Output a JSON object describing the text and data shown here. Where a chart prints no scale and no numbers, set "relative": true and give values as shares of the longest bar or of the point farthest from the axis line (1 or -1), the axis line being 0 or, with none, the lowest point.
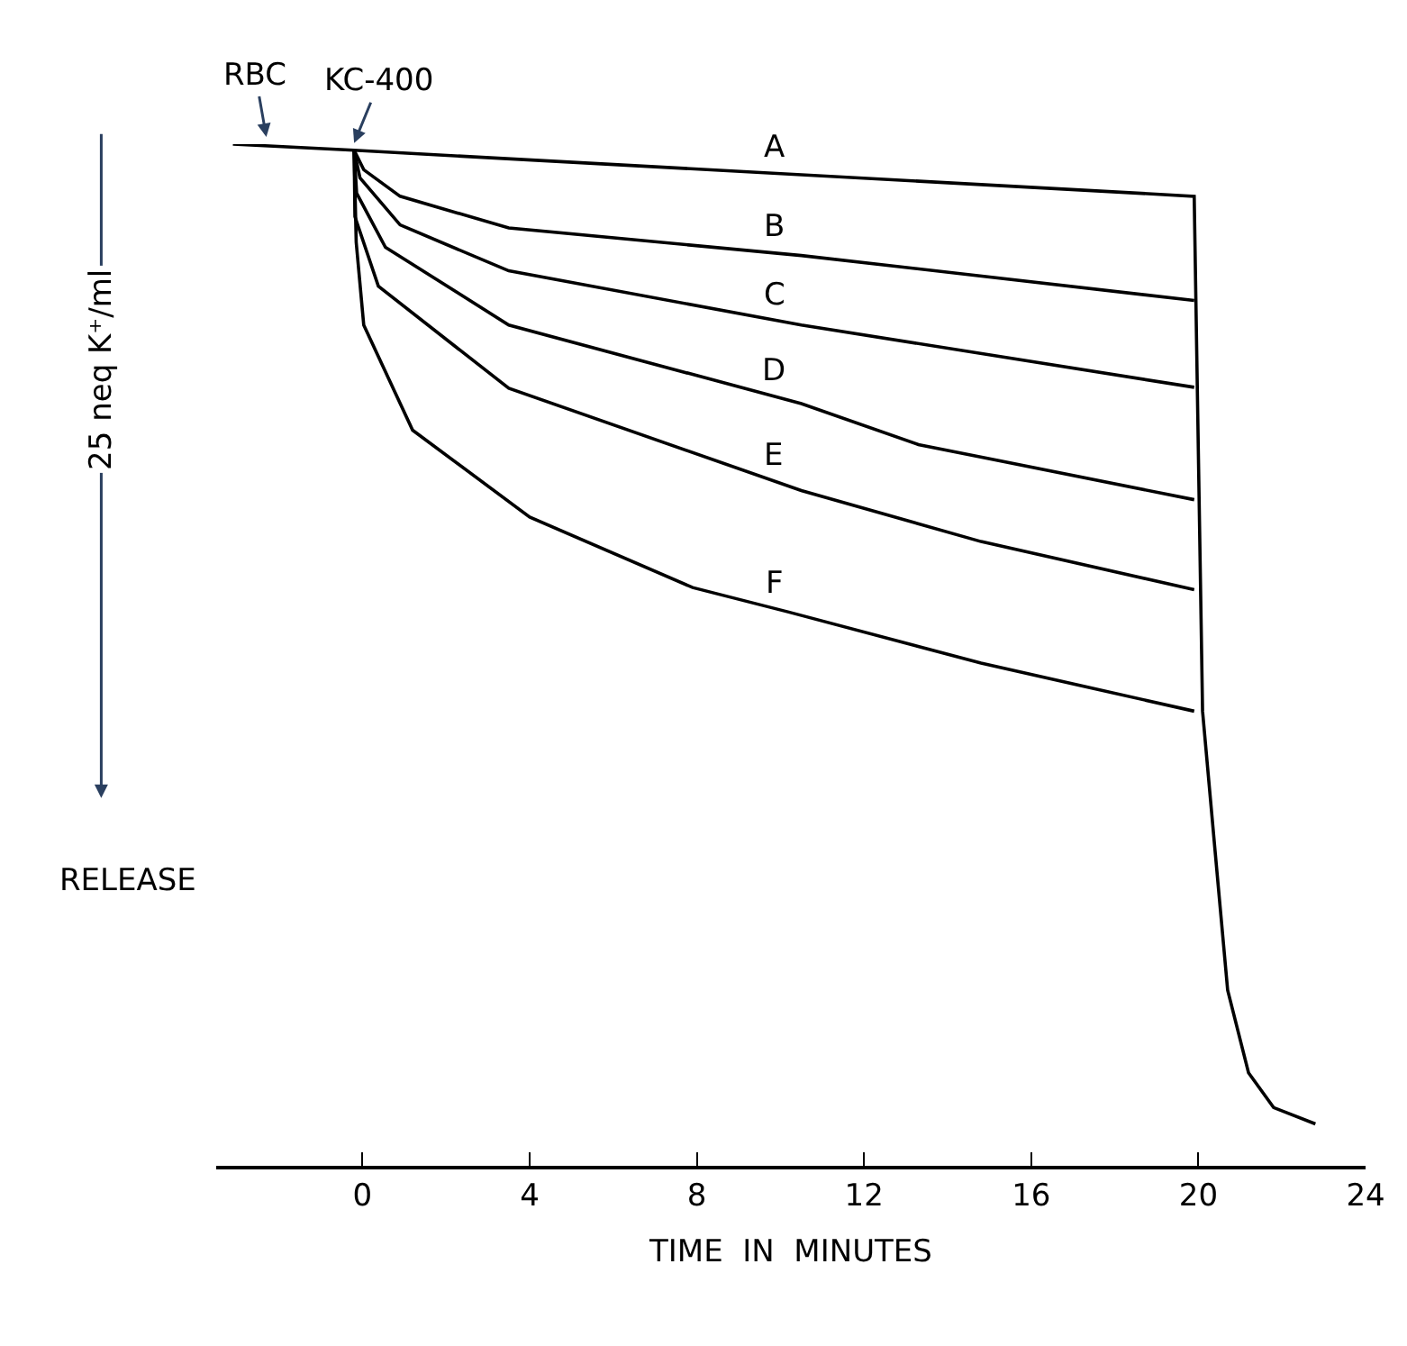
{
  "chart_data": {
    "type": "line",
    "relative": true,
    "xlabel": "TIME  IN  MINUTES",
    "ylabel": "25 neq K⁺/ml",
    "xlim": [
      -3.5,
      24
    ],
    "xticks": [
      0,
      4,
      8,
      12,
      16,
      20,
      24
    ],
    "legend": false,
    "marker": "none",
    "line_style": "solid",
    "annotations": [
      "RELEASE",
      {
        "text": "RBC",
        "x": -2.3,
        "y": 1.0
      },
      {
        "text": "KC-400",
        "x": -0.2,
        "y": 0.994
      }
    ],
    "series": [
      {
        "name": "A",
        "color": "#000000",
        "x": [
          -3.1,
          -0.2,
          19.9,
          20.1,
          20.4,
          20.7,
          21.2,
          21.8,
          22.8
        ],
        "values": [
          1.0,
          0.994,
          0.949,
          0.445,
          0.308,
          0.172,
          0.091,
          0.057,
          0.041
        ]
      },
      {
        "name": "B",
        "color": "#000000",
        "x": [
          -0.2,
          0.03,
          0.9,
          3.5,
          10.5,
          19.9
        ],
        "values": [
          0.994,
          0.975,
          0.949,
          0.918,
          0.891,
          0.847
        ]
      },
      {
        "name": "C",
        "color": "#000000",
        "x": [
          -0.2,
          -0.06,
          0.9,
          3.5,
          10.5,
          19.9
        ],
        "values": [
          0.994,
          0.967,
          0.921,
          0.876,
          0.823,
          0.762
        ]
      },
      {
        "name": "D",
        "color": "#000000",
        "x": [
          -0.2,
          -0.14,
          0.55,
          3.5,
          10.5,
          13.3,
          19.9
        ],
        "values": [
          0.994,
          0.952,
          0.899,
          0.823,
          0.746,
          0.706,
          0.652
        ]
      },
      {
        "name": "E",
        "color": "#000000",
        "x": [
          -0.2,
          -0.18,
          0.38,
          3.5,
          10.5,
          14.8,
          19.9
        ],
        "values": [
          0.994,
          0.929,
          0.861,
          0.761,
          0.661,
          0.611,
          0.564
        ]
      },
      {
        "name": "F",
        "color": "#000000",
        "x": [
          -0.2,
          -0.15,
          0.03,
          1.2,
          4.0,
          7.9,
          10.2,
          14.8,
          19.9
        ],
        "values": [
          0.994,
          0.904,
          0.823,
          0.72,
          0.635,
          0.566,
          0.542,
          0.492,
          0.445
        ]
      }
    ]
  }
}
